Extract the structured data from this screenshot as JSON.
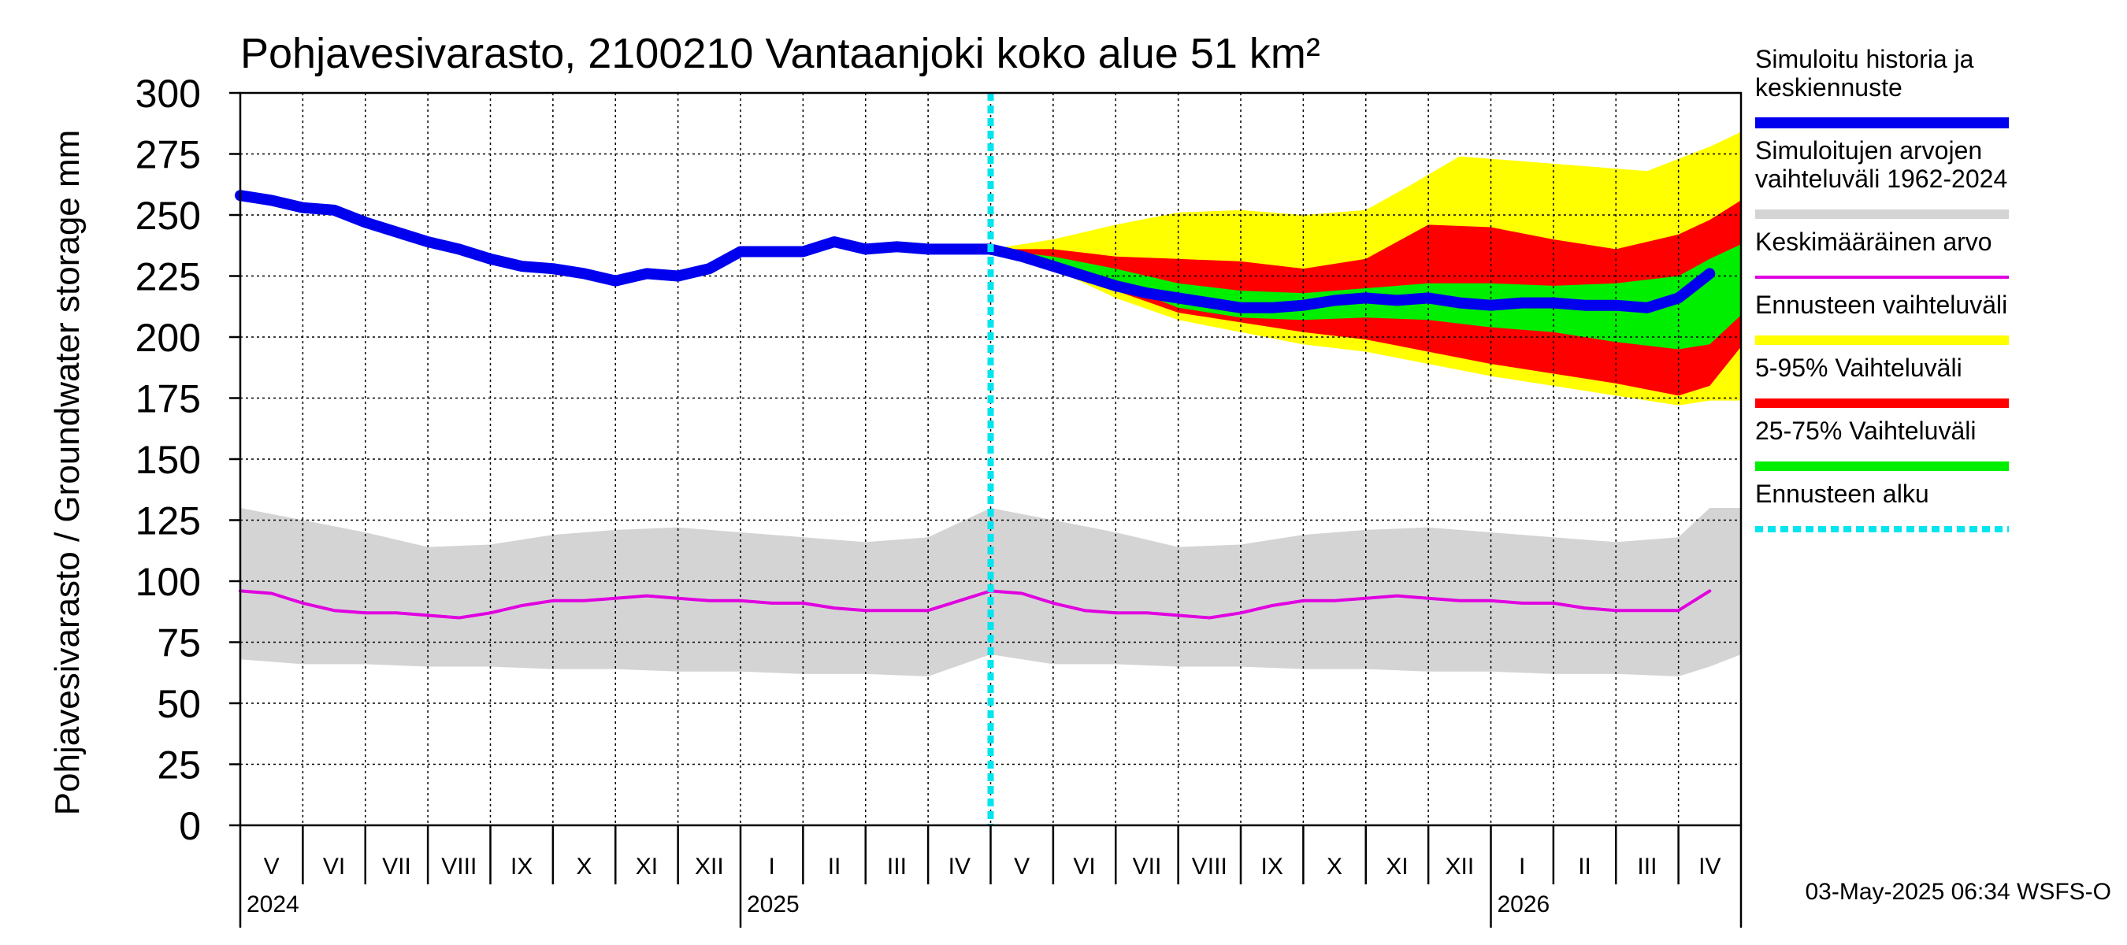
{
  "chart_data": {
    "type": "area",
    "title": "Pohjavesivarasto, 2100210 Vantaanjoki koko alue 51 km²",
    "ylabel": "Pohjavesivarasto / Groundwater storage   mm",
    "ylim": [
      0,
      300
    ],
    "yticks": [
      0,
      25,
      50,
      75,
      100,
      125,
      150,
      175,
      200,
      225,
      250,
      275,
      300
    ],
    "x_months": [
      "V",
      "VI",
      "VII",
      "VIII",
      "IX",
      "X",
      "XI",
      "XII",
      "I",
      "II",
      "III",
      "IV",
      "V",
      "VI",
      "VII",
      "VIII",
      "IX",
      "X",
      "XI",
      "XII",
      "I",
      "II",
      "III",
      "IV"
    ],
    "x_years": [
      {
        "label": "2024",
        "month_index": 0
      },
      {
        "label": "2025",
        "month_index": 8
      },
      {
        "label": "2026",
        "month_index": 20
      }
    ],
    "forecast_start_month": 12,
    "grid": true,
    "series": [
      {
        "name": "Simuloitu historia ja keskiennuste",
        "color": "#0000ee",
        "points": [
          [
            0,
            258
          ],
          [
            0.5,
            256
          ],
          [
            1,
            253
          ],
          [
            1.5,
            252
          ],
          [
            2,
            247
          ],
          [
            2.5,
            243
          ],
          [
            3,
            239
          ],
          [
            3.5,
            236
          ],
          [
            4,
            232
          ],
          [
            4.5,
            229
          ],
          [
            5,
            228
          ],
          [
            5.5,
            226
          ],
          [
            6,
            223
          ],
          [
            6.5,
            226
          ],
          [
            7,
            225
          ],
          [
            7.5,
            228
          ],
          [
            8,
            235
          ],
          [
            8.5,
            235
          ],
          [
            9,
            235
          ],
          [
            9.5,
            239
          ],
          [
            10,
            236
          ],
          [
            10.5,
            237
          ],
          [
            11,
            236
          ],
          [
            11.5,
            236
          ],
          [
            12,
            236
          ],
          [
            12.5,
            233
          ],
          [
            13,
            229
          ],
          [
            13.5,
            225
          ],
          [
            14,
            221
          ],
          [
            14.5,
            218
          ],
          [
            15,
            216
          ],
          [
            15.5,
            214
          ],
          [
            16,
            212
          ],
          [
            16.5,
            212
          ],
          [
            17,
            213
          ],
          [
            17.5,
            215
          ],
          [
            18,
            216
          ],
          [
            18.5,
            215
          ],
          [
            19,
            216
          ],
          [
            19.5,
            214
          ],
          [
            20,
            213
          ],
          [
            20.5,
            214
          ],
          [
            21,
            214
          ],
          [
            21.5,
            213
          ],
          [
            22,
            213
          ],
          [
            22.5,
            212
          ],
          [
            23,
            216
          ],
          [
            23.5,
            226
          ]
        ]
      },
      {
        "name": "Keskimääräinen arvo",
        "color": "#e000e0",
        "points": [
          [
            0,
            96
          ],
          [
            0.5,
            95
          ],
          [
            1,
            91
          ],
          [
            1.5,
            88
          ],
          [
            2,
            87
          ],
          [
            2.5,
            87
          ],
          [
            3,
            86
          ],
          [
            3.5,
            85
          ],
          [
            4,
            87
          ],
          [
            4.5,
            90
          ],
          [
            5,
            92
          ],
          [
            5.5,
            92
          ],
          [
            6,
            93
          ],
          [
            6.5,
            94
          ],
          [
            7,
            93
          ],
          [
            7.5,
            92
          ],
          [
            8,
            92
          ],
          [
            8.5,
            91
          ],
          [
            9,
            91
          ],
          [
            9.5,
            89
          ],
          [
            10,
            88
          ],
          [
            10.5,
            88
          ],
          [
            11,
            88
          ],
          [
            11.5,
            92
          ],
          [
            12,
            96
          ],
          [
            12.5,
            95
          ],
          [
            13,
            91
          ],
          [
            13.5,
            88
          ],
          [
            14,
            87
          ],
          [
            14.5,
            87
          ],
          [
            15,
            86
          ],
          [
            15.5,
            85
          ],
          [
            16,
            87
          ],
          [
            16.5,
            90
          ],
          [
            17,
            92
          ],
          [
            17.5,
            92
          ],
          [
            18,
            93
          ],
          [
            18.5,
            94
          ],
          [
            19,
            93
          ],
          [
            19.5,
            92
          ],
          [
            20,
            92
          ],
          [
            20.5,
            91
          ],
          [
            21,
            91
          ],
          [
            21.5,
            89
          ],
          [
            22,
            88
          ],
          [
            22.5,
            88
          ],
          [
            23,
            88
          ],
          [
            23.5,
            96
          ]
        ]
      }
    ],
    "bands": [
      {
        "name": "Simuloitujen arvojen vaihteluväli 1962-2024",
        "color": "#d4d4d4",
        "upper": [
          [
            0,
            130
          ],
          [
            1,
            125
          ],
          [
            2,
            120
          ],
          [
            3,
            114
          ],
          [
            4,
            115
          ],
          [
            5,
            119
          ],
          [
            6,
            121
          ],
          [
            7,
            122
          ],
          [
            8,
            120
          ],
          [
            9,
            118
          ],
          [
            10,
            116
          ],
          [
            11,
            118
          ],
          [
            12,
            130
          ],
          [
            13,
            125
          ],
          [
            14,
            120
          ],
          [
            15,
            114
          ],
          [
            16,
            115
          ],
          [
            17,
            119
          ],
          [
            18,
            121
          ],
          [
            19,
            122
          ],
          [
            20,
            120
          ],
          [
            21,
            118
          ],
          [
            22,
            116
          ],
          [
            23,
            118
          ],
          [
            23.5,
            130
          ],
          [
            24,
            130
          ]
        ],
        "lower": [
          [
            0,
            68
          ],
          [
            1,
            66
          ],
          [
            2,
            66
          ],
          [
            3,
            65
          ],
          [
            4,
            65
          ],
          [
            5,
            64
          ],
          [
            6,
            64
          ],
          [
            7,
            63
          ],
          [
            8,
            63
          ],
          [
            9,
            62
          ],
          [
            10,
            62
          ],
          [
            11,
            61
          ],
          [
            12,
            70
          ],
          [
            13,
            66
          ],
          [
            14,
            66
          ],
          [
            15,
            65
          ],
          [
            16,
            65
          ],
          [
            17,
            64
          ],
          [
            18,
            64
          ],
          [
            19,
            63
          ],
          [
            20,
            63
          ],
          [
            21,
            62
          ],
          [
            22,
            62
          ],
          [
            23,
            61
          ],
          [
            23.5,
            65
          ],
          [
            24,
            70
          ]
        ]
      },
      {
        "name": "Ennusteen vaihteluväli",
        "color": "#ffff00",
        "upper": [
          [
            12,
            236
          ],
          [
            13,
            240
          ],
          [
            14,
            246
          ],
          [
            15,
            251
          ],
          [
            16,
            252
          ],
          [
            17,
            250
          ],
          [
            18,
            252
          ],
          [
            18.7,
            262
          ],
          [
            19.5,
            274
          ],
          [
            20.5,
            272
          ],
          [
            21.5,
            270
          ],
          [
            22.5,
            268
          ],
          [
            23.5,
            278
          ],
          [
            24,
            284
          ]
        ],
        "lower": [
          [
            12,
            236
          ],
          [
            13,
            228
          ],
          [
            14,
            216
          ],
          [
            15,
            207
          ],
          [
            16,
            202
          ],
          [
            17,
            197
          ],
          [
            18,
            194
          ],
          [
            19,
            189
          ],
          [
            20,
            184
          ],
          [
            21,
            180
          ],
          [
            22,
            176
          ],
          [
            23,
            172
          ],
          [
            23.5,
            174
          ],
          [
            24,
            174
          ]
        ]
      },
      {
        "name": "5-95% Vaihteluväli",
        "color": "#ff0000",
        "upper": [
          [
            12,
            236
          ],
          [
            13,
            236
          ],
          [
            14,
            233
          ],
          [
            15,
            232
          ],
          [
            16,
            231
          ],
          [
            17,
            228
          ],
          [
            18,
            232
          ],
          [
            19,
            246
          ],
          [
            20,
            245
          ],
          [
            21,
            240
          ],
          [
            22,
            236
          ],
          [
            23,
            242
          ],
          [
            23.5,
            248
          ],
          [
            24,
            256
          ]
        ],
        "lower": [
          [
            12,
            236
          ],
          [
            13,
            229
          ],
          [
            14,
            219
          ],
          [
            15,
            210
          ],
          [
            16,
            206
          ],
          [
            17,
            202
          ],
          [
            18,
            199
          ],
          [
            19,
            194
          ],
          [
            20,
            189
          ],
          [
            21,
            185
          ],
          [
            22,
            181
          ],
          [
            23,
            176
          ],
          [
            23.5,
            180
          ],
          [
            24,
            196
          ]
        ]
      },
      {
        "name": "25-75% Vaihteluväli",
        "color": "#00ee00",
        "upper": [
          [
            12,
            236
          ],
          [
            13,
            233
          ],
          [
            14,
            228
          ],
          [
            15,
            222
          ],
          [
            16,
            219
          ],
          [
            17,
            218
          ],
          [
            18,
            220
          ],
          [
            19,
            222
          ],
          [
            20,
            222
          ],
          [
            21,
            221
          ],
          [
            22,
            222
          ],
          [
            23,
            225
          ],
          [
            23.5,
            232
          ],
          [
            24,
            238
          ]
        ],
        "lower": [
          [
            12,
            236
          ],
          [
            13,
            231
          ],
          [
            14,
            222
          ],
          [
            15,
            212
          ],
          [
            16,
            208
          ],
          [
            17,
            207
          ],
          [
            18,
            208
          ],
          [
            19,
            207
          ],
          [
            20,
            204
          ],
          [
            21,
            202
          ],
          [
            22,
            198
          ],
          [
            23,
            195
          ],
          [
            23.5,
            197
          ],
          [
            24,
            209
          ]
        ]
      }
    ]
  },
  "legend": [
    {
      "lines": [
        "Simuloitu historia ja",
        "keskiennuste"
      ],
      "color": "#0000ee",
      "style": "solid-thick"
    },
    {
      "lines": [
        "Simuloitujen arvojen",
        "vaihteluväli 1962-2024"
      ],
      "color": "#d4d4d4",
      "style": "solid"
    },
    {
      "lines": [
        "Keskimääräinen arvo"
      ],
      "color": "#e000e0",
      "style": "thin"
    },
    {
      "lines": [
        "Ennusteen vaihteluväli"
      ],
      "color": "#ffff00",
      "style": "solid"
    },
    {
      "lines": [
        "5-95% Vaihteluväli"
      ],
      "color": "#ff0000",
      "style": "solid"
    },
    {
      "lines": [
        "25-75% Vaihteluväli"
      ],
      "color": "#00ee00",
      "style": "solid"
    },
    {
      "lines": [
        "Ennusteen alku"
      ],
      "color": "#00e5ee",
      "style": "dotted"
    }
  ],
  "forecast_line_color": "#00e5ee",
  "timestamp": "03-May-2025 06:34 WSFS-O"
}
